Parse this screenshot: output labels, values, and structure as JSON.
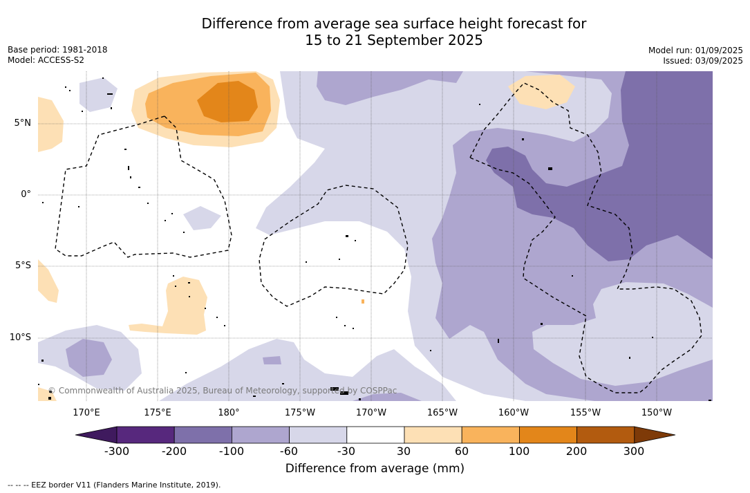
{
  "title_line1": "Difference from average sea surface height forecast for",
  "title_line2": "15 to 21 September 2025",
  "base_period": "Base period: 1981-2018",
  "model": "Model: ACCESS-S2",
  "model_run": "Model run: 01/09/2025",
  "issued": "Issued: 03/09/2025",
  "lat_labels": [
    "5°N",
    "0°",
    "5°S",
    "10°S"
  ],
  "lon_labels": [
    "170°E",
    "175°E",
    "180°",
    "175°W",
    "170°W",
    "165°W",
    "160°W",
    "155°W",
    "150°W"
  ],
  "copyright": "© Commonwealth of Australia 2025, Bureau of Meteorology, supported by COSPPac",
  "colorbar": {
    "title": "Difference from average (mm)",
    "ticks": [
      "-300",
      "-200",
      "-100",
      "-60",
      "-30",
      "30",
      "60",
      "100",
      "200",
      "300"
    ],
    "colors": [
      "#3f1a5e",
      "#57287d",
      "#7e70aa",
      "#aea6cf",
      "#d7d7e9",
      "#ffffff",
      "#fde0b5",
      "#f9b35c",
      "#e3861a",
      "#b25b0f",
      "#7e3a08"
    ]
  },
  "footnote": "--  --  -- EEZ border V11 (Flanders Marine Institute, 2019)."
}
